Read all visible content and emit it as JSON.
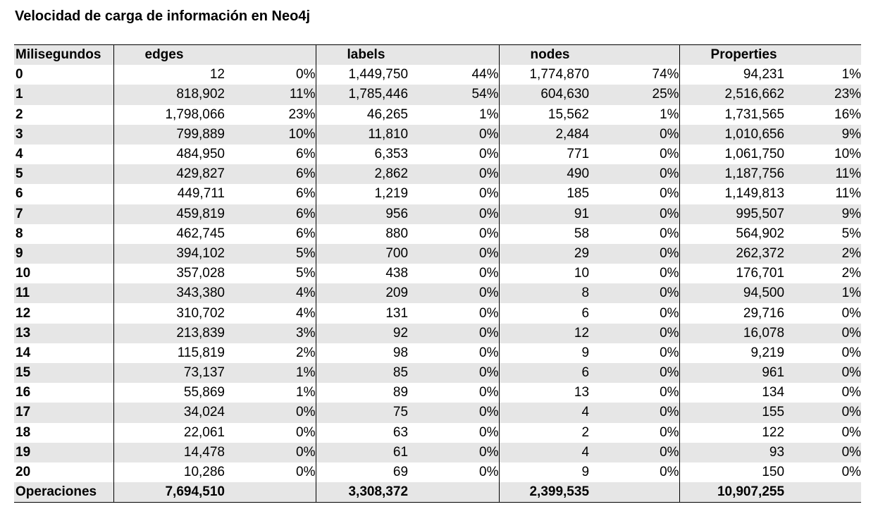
{
  "title": "Velocidad de carga de información en Neo4j",
  "chart_data": {
    "type": "table",
    "title": "Velocidad de carga de información en Neo4j",
    "columns": [
      "Milisegundos",
      "edges",
      "labels",
      "nodes",
      "Properties"
    ],
    "rows": [
      {
        "ms": "0",
        "edges": "12",
        "edges_pct": "0%",
        "labels": "1,449,750",
        "labels_pct": "44%",
        "nodes": "1,774,870",
        "nodes_pct": "74%",
        "properties": "94,231",
        "properties_pct": "1%"
      },
      {
        "ms": "1",
        "edges": "818,902",
        "edges_pct": "11%",
        "labels": "1,785,446",
        "labels_pct": "54%",
        "nodes": "604,630",
        "nodes_pct": "25%",
        "properties": "2,516,662",
        "properties_pct": "23%"
      },
      {
        "ms": "2",
        "edges": "1,798,066",
        "edges_pct": "23%",
        "labels": "46,265",
        "labels_pct": "1%",
        "nodes": "15,562",
        "nodes_pct": "1%",
        "properties": "1,731,565",
        "properties_pct": "16%"
      },
      {
        "ms": "3",
        "edges": "799,889",
        "edges_pct": "10%",
        "labels": "11,810",
        "labels_pct": "0%",
        "nodes": "2,484",
        "nodes_pct": "0%",
        "properties": "1,010,656",
        "properties_pct": "9%"
      },
      {
        "ms": "4",
        "edges": "484,950",
        "edges_pct": "6%",
        "labels": "6,353",
        "labels_pct": "0%",
        "nodes": "771",
        "nodes_pct": "0%",
        "properties": "1,061,750",
        "properties_pct": "10%"
      },
      {
        "ms": "5",
        "edges": "429,827",
        "edges_pct": "6%",
        "labels": "2,862",
        "labels_pct": "0%",
        "nodes": "490",
        "nodes_pct": "0%",
        "properties": "1,187,756",
        "properties_pct": "11%"
      },
      {
        "ms": "6",
        "edges": "449,711",
        "edges_pct": "6%",
        "labels": "1,219",
        "labels_pct": "0%",
        "nodes": "185",
        "nodes_pct": "0%",
        "properties": "1,149,813",
        "properties_pct": "11%"
      },
      {
        "ms": "7",
        "edges": "459,819",
        "edges_pct": "6%",
        "labels": "956",
        "labels_pct": "0%",
        "nodes": "91",
        "nodes_pct": "0%",
        "properties": "995,507",
        "properties_pct": "9%"
      },
      {
        "ms": "8",
        "edges": "462,745",
        "edges_pct": "6%",
        "labels": "880",
        "labels_pct": "0%",
        "nodes": "58",
        "nodes_pct": "0%",
        "properties": "564,902",
        "properties_pct": "5%"
      },
      {
        "ms": "9",
        "edges": "394,102",
        "edges_pct": "5%",
        "labels": "700",
        "labels_pct": "0%",
        "nodes": "29",
        "nodes_pct": "0%",
        "properties": "262,372",
        "properties_pct": "2%"
      },
      {
        "ms": "10",
        "edges": "357,028",
        "edges_pct": "5%",
        "labels": "438",
        "labels_pct": "0%",
        "nodes": "10",
        "nodes_pct": "0%",
        "properties": "176,701",
        "properties_pct": "2%"
      },
      {
        "ms": "11",
        "edges": "343,380",
        "edges_pct": "4%",
        "labels": "209",
        "labels_pct": "0%",
        "nodes": "8",
        "nodes_pct": "0%",
        "properties": "94,500",
        "properties_pct": "1%"
      },
      {
        "ms": "12",
        "edges": "310,702",
        "edges_pct": "4%",
        "labels": "131",
        "labels_pct": "0%",
        "nodes": "6",
        "nodes_pct": "0%",
        "properties": "29,716",
        "properties_pct": "0%"
      },
      {
        "ms": "13",
        "edges": "213,839",
        "edges_pct": "3%",
        "labels": "92",
        "labels_pct": "0%",
        "nodes": "12",
        "nodes_pct": "0%",
        "properties": "16,078",
        "properties_pct": "0%"
      },
      {
        "ms": "14",
        "edges": "115,819",
        "edges_pct": "2%",
        "labels": "98",
        "labels_pct": "0%",
        "nodes": "9",
        "nodes_pct": "0%",
        "properties": "9,219",
        "properties_pct": "0%"
      },
      {
        "ms": "15",
        "edges": "73,137",
        "edges_pct": "1%",
        "labels": "85",
        "labels_pct": "0%",
        "nodes": "6",
        "nodes_pct": "0%",
        "properties": "961",
        "properties_pct": "0%"
      },
      {
        "ms": "16",
        "edges": "55,869",
        "edges_pct": "1%",
        "labels": "89",
        "labels_pct": "0%",
        "nodes": "13",
        "nodes_pct": "0%",
        "properties": "134",
        "properties_pct": "0%"
      },
      {
        "ms": "17",
        "edges": "34,024",
        "edges_pct": "0%",
        "labels": "75",
        "labels_pct": "0%",
        "nodes": "4",
        "nodes_pct": "0%",
        "properties": "155",
        "properties_pct": "0%"
      },
      {
        "ms": "18",
        "edges": "22,061",
        "edges_pct": "0%",
        "labels": "63",
        "labels_pct": "0%",
        "nodes": "2",
        "nodes_pct": "0%",
        "properties": "122",
        "properties_pct": "0%"
      },
      {
        "ms": "19",
        "edges": "14,478",
        "edges_pct": "0%",
        "labels": "61",
        "labels_pct": "0%",
        "nodes": "4",
        "nodes_pct": "0%",
        "properties": "93",
        "properties_pct": "0%"
      },
      {
        "ms": "20",
        "edges": "10,286",
        "edges_pct": "0%",
        "labels": "69",
        "labels_pct": "0%",
        "nodes": "9",
        "nodes_pct": "0%",
        "properties": "150",
        "properties_pct": "0%"
      }
    ],
    "totals": {
      "label": "Operaciones",
      "edges": "7,694,510",
      "labels": "3,308,372",
      "nodes": "2,399,535",
      "properties": "10,907,255"
    },
    "colors": {
      "band": "#e6e6e6",
      "rule": "#000000"
    }
  }
}
